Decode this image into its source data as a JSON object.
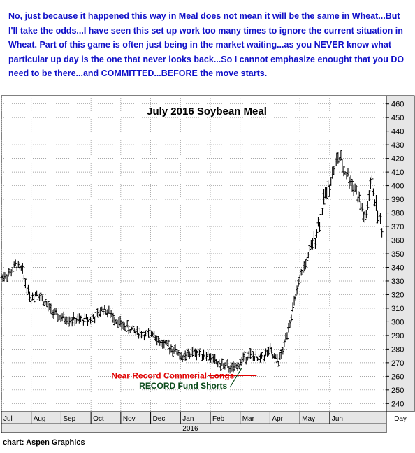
{
  "commentary": {
    "text": "No, just because it happened this way in Meal does not mean it will be the same in Wheat...But I'll take the odds...I have seen this set up work too many times to ignore the current situation in Wheat. Part of this game is often just being in the market waiting...as you NEVER know what particular up day is the one that never looks back...So I cannot emphasize enought that you DO need to be there...and COMMITTED...BEFORE the move starts.",
    "color": "#1010c8"
  },
  "source": "chart: Aspen Graphics",
  "chart_data": {
    "type": "bar",
    "style": "ohlc-price-bars",
    "title": "July 2016 Soybean Meal",
    "x_axis_label": "Day",
    "year_label": "2016",
    "x_tick_labels": [
      "Jul",
      "Aug",
      "Sep",
      "Oct",
      "Nov",
      "Dec",
      "Jan",
      "Feb",
      "Mar",
      "Apr",
      "May",
      "Jun"
    ],
    "y_ticks": [
      240,
      250,
      260,
      270,
      280,
      290,
      300,
      310,
      320,
      330,
      340,
      350,
      360,
      370,
      380,
      390,
      400,
      410,
      420,
      430,
      440,
      450,
      460
    ],
    "ylim": [
      234,
      466
    ],
    "y_axis_side": "right",
    "grid": true,
    "x_units": "months since start of July 2015",
    "x_range": [
      0,
      12.9
    ],
    "price_path": [
      [
        0.0,
        333
      ],
      [
        0.3,
        336
      ],
      [
        0.5,
        342
      ],
      [
        0.7,
        338
      ],
      [
        0.85,
        325
      ],
      [
        1.0,
        318
      ],
      [
        1.2,
        322
      ],
      [
        1.4,
        316
      ],
      [
        1.6,
        310
      ],
      [
        1.8,
        305
      ],
      [
        2.0,
        303
      ],
      [
        2.3,
        302
      ],
      [
        2.6,
        301
      ],
      [
        2.9,
        302
      ],
      [
        3.2,
        304
      ],
      [
        3.4,
        310
      ],
      [
        3.7,
        305
      ],
      [
        4.0,
        298
      ],
      [
        4.3,
        295
      ],
      [
        4.6,
        292
      ],
      [
        4.9,
        290
      ],
      [
        5.1,
        293
      ],
      [
        5.3,
        285
      ],
      [
        5.6,
        282
      ],
      [
        5.9,
        278
      ],
      [
        6.1,
        273
      ],
      [
        6.3,
        276
      ],
      [
        6.5,
        278
      ],
      [
        6.7,
        277
      ],
      [
        6.9,
        276
      ],
      [
        7.1,
        272
      ],
      [
        7.3,
        269
      ],
      [
        7.6,
        267
      ],
      [
        7.8,
        265
      ],
      [
        8.0,
        270
      ],
      [
        8.2,
        275
      ],
      [
        8.4,
        276
      ],
      [
        8.6,
        272
      ],
      [
        8.8,
        275
      ],
      [
        9.0,
        279
      ],
      [
        9.15,
        273
      ],
      [
        9.3,
        271
      ],
      [
        9.45,
        280
      ],
      [
        9.6,
        295
      ],
      [
        9.75,
        308
      ],
      [
        9.9,
        322
      ],
      [
        10.1,
        338
      ],
      [
        10.3,
        348
      ],
      [
        10.5,
        362
      ],
      [
        10.7,
        378
      ],
      [
        10.85,
        393
      ],
      [
        11.0,
        402
      ],
      [
        11.15,
        413
      ],
      [
        11.3,
        422
      ],
      [
        11.45,
        413
      ],
      [
        11.6,
        408
      ],
      [
        11.75,
        402
      ],
      [
        11.9,
        396
      ],
      [
        12.0,
        388
      ],
      [
        12.1,
        382
      ],
      [
        12.2,
        372
      ],
      [
        12.3,
        390
      ],
      [
        12.4,
        404
      ],
      [
        12.5,
        392
      ],
      [
        12.6,
        380
      ],
      [
        12.75,
        370
      ]
    ],
    "annotations": [
      {
        "text": "Near Record Commerial Longs",
        "color": "#e00000",
        "x": 7.85,
        "y": 261
      },
      {
        "text": "RECORD Fund Shorts",
        "color": "#0a4a1a",
        "x": 7.8,
        "y": 253
      }
    ],
    "colors": {
      "bars": "#000000",
      "grid": "#888888",
      "axis_panel": "#e6e6e6"
    }
  }
}
